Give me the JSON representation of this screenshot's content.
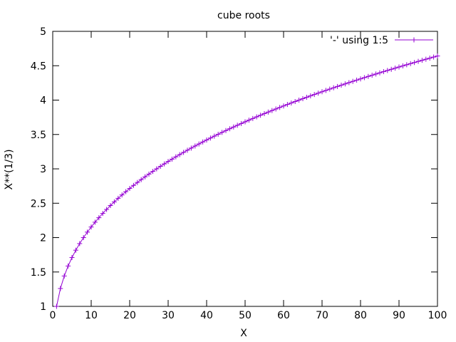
{
  "chart_data": {
    "type": "line",
    "title": "cube roots",
    "xlabel": "X",
    "ylabel": "X**(1/3)",
    "xlim": [
      0,
      100
    ],
    "ylim": [
      1,
      5
    ],
    "xticks": [
      0,
      10,
      20,
      30,
      40,
      50,
      60,
      70,
      80,
      90,
      100
    ],
    "xtick_labels": [
      "0",
      "10",
      "20",
      "30",
      "40",
      "50",
      "60",
      "70",
      "80",
      "90",
      "100"
    ],
    "yticks": [
      1,
      1.5,
      2,
      2.5,
      3,
      3.5,
      4,
      4.5,
      5
    ],
    "ytick_labels": [
      "1",
      "1.5",
      "2",
      "2.5",
      "3",
      "3.5",
      "4",
      "4.5",
      "5"
    ],
    "grid": false,
    "legend_position": "top-right",
    "series": [
      {
        "name": "'-' using 1:5",
        "color": "#9400d3",
        "marker": "plus",
        "x": [
          1,
          2,
          3,
          4,
          5,
          6,
          7,
          8,
          9,
          10,
          11,
          12,
          13,
          14,
          15,
          16,
          17,
          18,
          19,
          20,
          21,
          22,
          23,
          24,
          25,
          26,
          27,
          28,
          29,
          30,
          31,
          32,
          33,
          34,
          35,
          36,
          37,
          38,
          39,
          40,
          41,
          42,
          43,
          44,
          45,
          46,
          47,
          48,
          49,
          50,
          51,
          52,
          53,
          54,
          55,
          56,
          57,
          58,
          59,
          60,
          61,
          62,
          63,
          64,
          65,
          66,
          67,
          68,
          69,
          70,
          71,
          72,
          73,
          74,
          75,
          76,
          77,
          78,
          79,
          80,
          81,
          82,
          83,
          84,
          85,
          86,
          87,
          88,
          89,
          90,
          91,
          92,
          93,
          94,
          95,
          96,
          97,
          98,
          99,
          100
        ],
        "y": [
          1.0,
          1.2599,
          1.4422,
          1.5874,
          1.71,
          1.8171,
          1.9129,
          2.0,
          2.0801,
          2.1544,
          2.224,
          2.2894,
          2.3513,
          2.4101,
          2.4662,
          2.5198,
          2.5713,
          2.6207,
          2.6684,
          2.7144,
          2.7589,
          2.802,
          2.8439,
          2.8845,
          2.924,
          2.9625,
          3.0,
          3.0366,
          3.0723,
          3.1072,
          3.1414,
          3.1748,
          3.2075,
          3.2396,
          3.2711,
          3.3019,
          3.3322,
          3.362,
          3.3912,
          3.42,
          3.4482,
          3.476,
          3.5034,
          3.5303,
          3.5569,
          3.583,
          3.6088,
          3.6342,
          3.6593,
          3.684,
          3.7084,
          3.7325,
          3.7563,
          3.7798,
          3.803,
          3.8259,
          3.8485,
          3.8709,
          3.893,
          3.9149,
          3.9365,
          3.9579,
          3.9791,
          4.0,
          4.0207,
          4.0412,
          4.0615,
          4.0817,
          4.1016,
          4.1213,
          4.1408,
          4.1602,
          4.1793,
          4.1983,
          4.2172,
          4.2358,
          4.2543,
          4.2727,
          4.2908,
          4.3089,
          4.3267,
          4.3445,
          4.3621,
          4.3795,
          4.3968,
          4.414,
          4.431,
          4.448,
          4.4647,
          4.4814,
          4.4979,
          4.5144,
          4.5307,
          4.5468,
          4.5629,
          4.5789,
          4.5947,
          4.6104,
          4.6261,
          4.6416
        ]
      }
    ]
  }
}
